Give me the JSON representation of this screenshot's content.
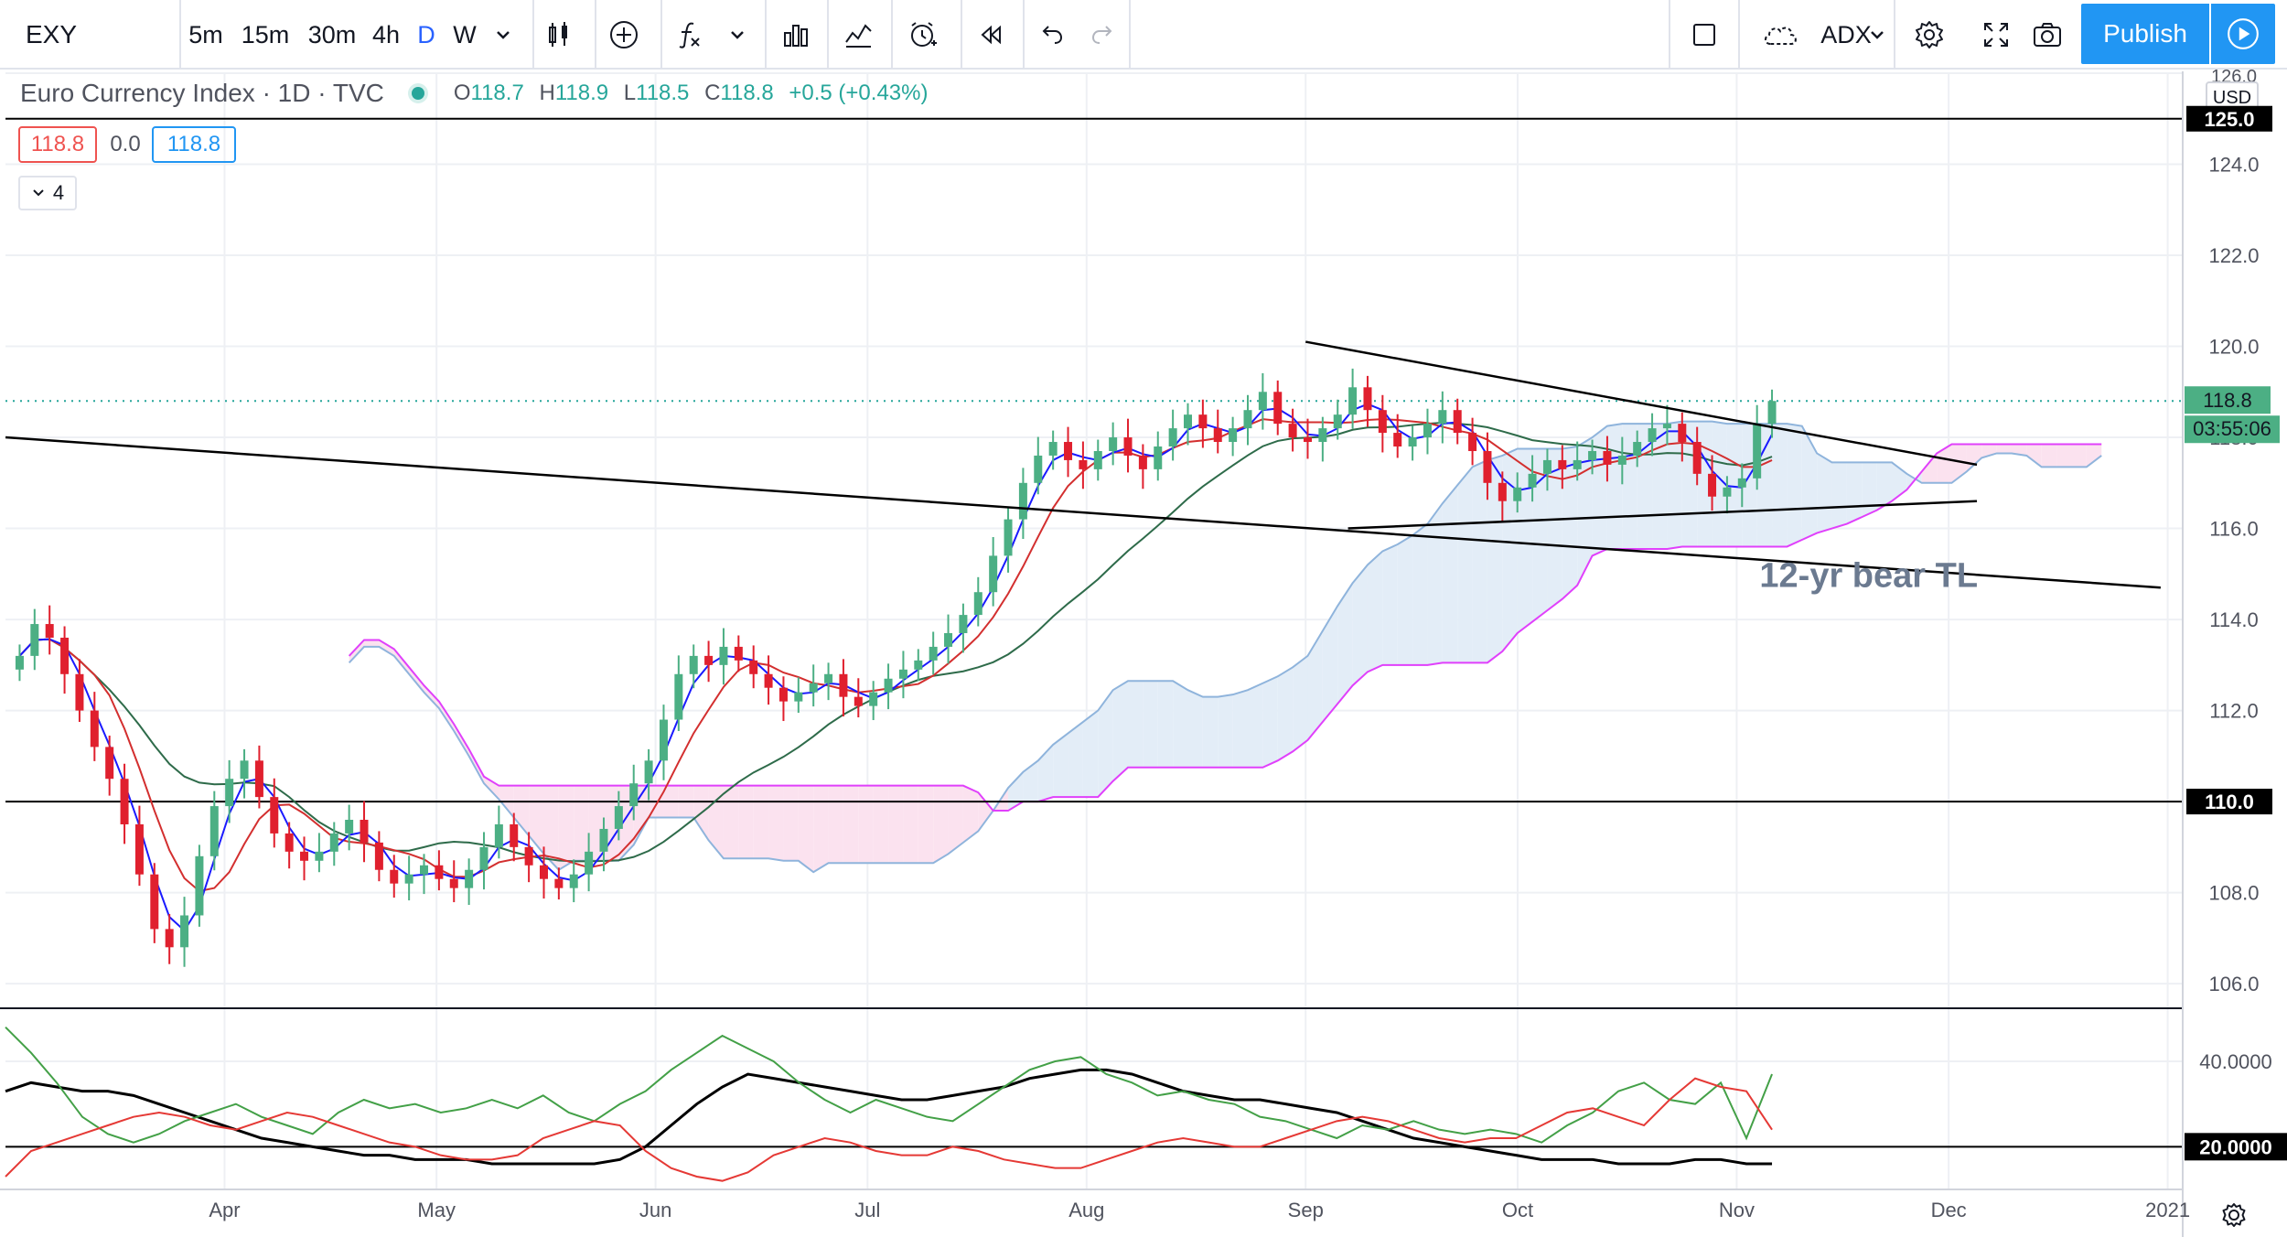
{
  "toolbar": {
    "symbol": "EXY",
    "intervals": [
      "5m",
      "15m",
      "30m",
      "4h",
      "D",
      "W"
    ],
    "indicator_label": "ADX",
    "publish_label": "Publish"
  },
  "legend": {
    "title": "Euro Currency Index · 1D · TVC",
    "open_label": "O",
    "open": "118.7",
    "high_label": "H",
    "high": "118.9",
    "low_label": "L",
    "low": "118.5",
    "close_label": "C",
    "close": "118.8",
    "change": "+0.5 (+0.43%)",
    "value_red": "118.8",
    "value_mid": "0.0",
    "value_blue": "118.8",
    "collapse_count": "4"
  },
  "colors": {
    "up": "#26a69a",
    "candle_up": "#4caf84",
    "candle_down": "#e0202e",
    "ma_fast": "#1a1aff",
    "ma_mid": "#d32f2f",
    "ma_slow": "#2e6b4a",
    "cloud_bull_fill": "#e3edf7",
    "cloud_bear_fill": "#fbe2ef",
    "cloud_bull_edge": "#8fb4dc",
    "cloud_bear_edge": "#e040fb",
    "adx": "#000000",
    "plus_di": "#43a047",
    "minus_di": "#e53935",
    "publish": "#2196f3"
  },
  "chart_data": [
    {
      "type": "candlestick",
      "symbol": "Euro Currency Index",
      "ylim": [
        105.5,
        126.0
      ],
      "yticks": [
        106.0,
        108.0,
        110.0,
        112.0,
        114.0,
        116.0,
        118.0,
        120.0,
        122.0,
        124.0,
        126.0
      ],
      "axis_currency": "USD",
      "x_labels": [
        "Apr",
        "May",
        "Jun",
        "Jul",
        "Aug",
        "Sep",
        "Oct",
        "Nov",
        "Dec",
        "2021"
      ],
      "price_label": "118.8",
      "countdown": "03:55:06",
      "horizontal_lines": [
        {
          "value": 125.0,
          "label": "125.0"
        },
        {
          "value": 110.0,
          "label": "110.0"
        }
      ],
      "close_series": [
        113.2,
        113.9,
        113.6,
        112.8,
        112.0,
        111.2,
        110.5,
        109.5,
        108.4,
        107.2,
        106.8,
        107.5,
        108.8,
        109.9,
        110.5,
        110.9,
        110.1,
        109.3,
        108.9,
        108.7,
        108.9,
        109.3,
        109.6,
        109.1,
        108.5,
        108.2,
        108.4,
        108.6,
        108.3,
        108.1,
        108.5,
        109.0,
        109.5,
        109.0,
        108.6,
        108.3,
        108.1,
        108.4,
        108.9,
        109.4,
        109.9,
        110.4,
        110.9,
        111.8,
        112.8,
        113.2,
        113.0,
        113.4,
        113.1,
        112.8,
        112.5,
        112.2,
        112.4,
        112.6,
        112.8,
        112.3,
        112.1,
        112.4,
        112.7,
        112.9,
        113.1,
        113.4,
        113.7,
        114.1,
        114.6,
        115.4,
        116.2,
        117.0,
        117.6,
        117.9,
        117.5,
        117.3,
        117.7,
        118.0,
        117.6,
        117.3,
        117.8,
        118.2,
        118.5,
        118.2,
        117.9,
        118.2,
        118.6,
        119.0,
        118.3,
        118.0,
        117.9,
        118.2,
        118.5,
        119.1,
        118.6,
        118.1,
        117.8,
        118.0,
        118.3,
        118.6,
        118.1,
        117.7,
        117.0,
        116.6,
        116.9,
        117.2,
        117.5,
        117.3,
        117.5,
        117.7,
        117.4,
        117.6,
        117.9,
        118.2,
        118.3,
        117.9,
        117.2,
        116.7,
        116.9,
        117.1,
        118.3,
        118.8
      ],
      "annotations": [
        {
          "text": "12-yr bear TL"
        }
      ],
      "trendlines": [
        {
          "label": "12-yr bear TL",
          "from": {
            "date": "2020-03-01",
            "price": 118.0
          },
          "to": {
            "date": "2020-12-31",
            "price": 114.7
          }
        },
        {
          "from": {
            "date": "2020-09-01",
            "price": 120.1
          },
          "to": {
            "date": "2020-12-05",
            "price": 117.4
          }
        },
        {
          "from": {
            "date": "2020-09-07",
            "price": 116.0
          },
          "to": {
            "date": "2020-12-05",
            "price": 116.6
          }
        }
      ]
    },
    {
      "type": "line",
      "indicator": "ADX",
      "ylim": [
        10,
        52
      ],
      "yticks": [
        40.0,
        20.0
      ],
      "ytick_labels": [
        "40.0000",
        "20.0000"
      ],
      "horizontal_lines": [
        {
          "value": 20.0,
          "label": "20.0000"
        }
      ],
      "series": [
        {
          "values": [
            33,
            35,
            34,
            33,
            33,
            32,
            30,
            28,
            26,
            24,
            22,
            21,
            20,
            19,
            18,
            18,
            17,
            17,
            17,
            16,
            16,
            16,
            16,
            16,
            17,
            20,
            25,
            30,
            34,
            37,
            36,
            35,
            34,
            33,
            32,
            31,
            31,
            32,
            33,
            34,
            36,
            37,
            38,
            38,
            37,
            35,
            33,
            32,
            31,
            31,
            30,
            29,
            28,
            26,
            24,
            22,
            21,
            20,
            19,
            18,
            17,
            17,
            17,
            16,
            16,
            16,
            17,
            17,
            16,
            16
          ]
        },
        {
          "values": [
            48,
            42,
            35,
            27,
            23,
            21,
            23,
            26,
            28,
            30,
            27,
            25,
            23,
            28,
            31,
            29,
            30,
            28,
            29,
            31,
            29,
            32,
            28,
            26,
            30,
            33,
            38,
            42,
            46,
            43,
            40,
            35,
            31,
            28,
            31,
            29,
            27,
            26,
            30,
            34,
            38,
            40,
            41,
            37,
            35,
            32,
            33,
            31,
            30,
            27,
            26,
            24,
            22,
            25,
            24,
            26,
            24,
            23,
            24,
            23,
            21,
            25,
            28,
            33,
            35,
            31,
            30,
            35,
            22,
            37
          ]
        },
        {
          "values": [
            13,
            19,
            21,
            23,
            25,
            27,
            28,
            27,
            25,
            24,
            26,
            28,
            27,
            25,
            23,
            21,
            20,
            18,
            17,
            17,
            18,
            22,
            24,
            26,
            25,
            19,
            15,
            13,
            12,
            14,
            18,
            20,
            22,
            21,
            19,
            18,
            18,
            20,
            19,
            17,
            16,
            15,
            15,
            17,
            19,
            21,
            22,
            21,
            20,
            20,
            22,
            24,
            26,
            27,
            26,
            24,
            22,
            21,
            22,
            22,
            25,
            28,
            29,
            27,
            25,
            31,
            36,
            34,
            33,
            24
          ]
        }
      ]
    }
  ]
}
